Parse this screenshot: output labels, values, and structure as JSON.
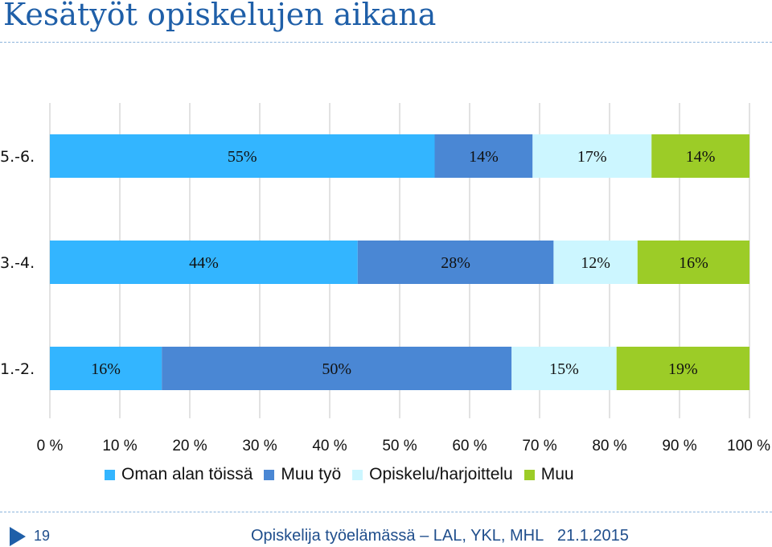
{
  "title": "Kesätyöt opiskelujen aikana",
  "footer": {
    "page_number": "19",
    "text": "Opiskelija työelämässä – LAL, YKL, MHL",
    "date": "21.1.2015"
  },
  "chart_data": {
    "type": "bar",
    "orientation": "horizontal",
    "stacked": "percent",
    "categories": [
      "5.-6.",
      "3.-4.",
      "1.-2."
    ],
    "series": [
      {
        "name": "Oman alan töissä",
        "values": [
          55,
          44,
          16
        ],
        "labels": [
          "55%",
          "44%",
          "16%"
        ],
        "color": "#33b5ff"
      },
      {
        "name": "Muu työ",
        "values": [
          14,
          28,
          50
        ],
        "labels": [
          "14%",
          "28%",
          "50%"
        ],
        "color": "#4a87d4"
      },
      {
        "name": "Opiskelu/harjoittelu",
        "values": [
          17,
          12,
          15
        ],
        "labels": [
          "17%",
          "12%",
          "15%"
        ],
        "color": "#ccf6ff"
      },
      {
        "name": "Muu",
        "values": [
          14,
          16,
          19
        ],
        "labels": [
          "14%",
          "16%",
          "19%"
        ],
        "color": "#9ccc27"
      }
    ],
    "xlim": [
      0,
      100
    ],
    "xticks": [
      "0 %",
      "10 %",
      "20 %",
      "30 %",
      "40 %",
      "50 %",
      "60 %",
      "70 %",
      "80 %",
      "90 %",
      "100 %"
    ],
    "grid": "vertical",
    "legend_position": "bottom"
  }
}
